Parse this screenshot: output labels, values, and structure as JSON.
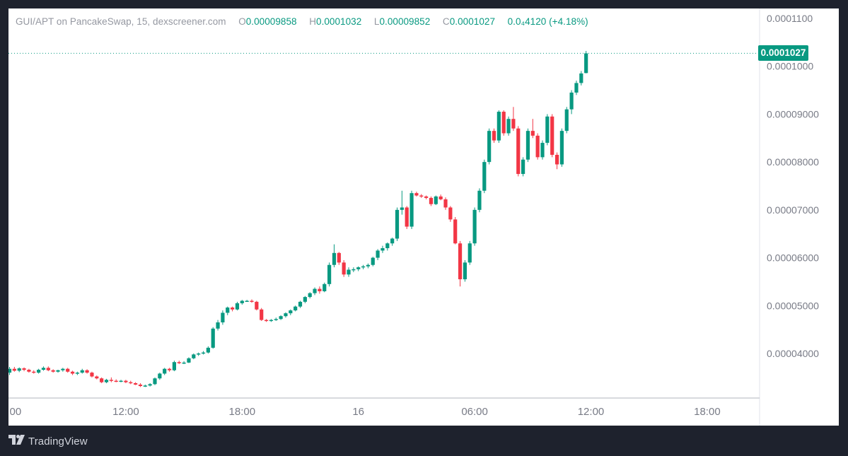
{
  "legend": {
    "symbol_text": "GUI/APT on PancakeSwap, 15, dexscreener.com",
    "open_label": "O",
    "open_value": "0.00009858",
    "high_label": "H",
    "high_value": "0.0001032",
    "low_label": "L",
    "low_value": "0.00009852",
    "close_label": "C",
    "close_value": "0.0001027",
    "change_text": "0.0₄4120 (+4.18%)"
  },
  "last_price_label": "0.0001027",
  "footer": {
    "brand": "TradingView",
    "logo_icon": "tradingview-logo-icon"
  },
  "colors": {
    "up": "#089981",
    "down": "#f23645",
    "background": "#ffffff",
    "frame": "#1e222d",
    "axis_text": "#787b86"
  },
  "chart_data": {
    "type": "candlestick",
    "title": "GUI/APT on PancakeSwap, 15, dexscreener.com",
    "interval": "15",
    "ylim": [
      3.3e-05,
      0.000112
    ],
    "y_ticks": [
      "0.0001100",
      "0.0001000",
      "0.00009000",
      "0.00008000",
      "0.00007000",
      "0.00006000",
      "0.00005000",
      "0.00004000"
    ],
    "y_tick_values": [
      0.00011,
      0.0001,
      9e-05,
      8e-05,
      7e-05,
      6e-05,
      5e-05,
      4e-05
    ],
    "x_ticks": [
      {
        "label": "00",
        "bar": 0
      },
      {
        "label": "12:00",
        "bar": 24
      },
      {
        "label": "18:00",
        "bar": 48
      },
      {
        "label": "16",
        "bar": 72
      },
      {
        "label": "06:00",
        "bar": 96
      },
      {
        "label": "12:00",
        "bar": 120
      },
      {
        "label": "18:00",
        "bar": 144
      }
    ],
    "last_price": 0.0001027,
    "grid": false,
    "candles_ohlc": [
      [
        3.6,
        3.72,
        3.55,
        3.68
      ],
      [
        3.68,
        3.72,
        3.62,
        3.64
      ],
      [
        3.64,
        3.71,
        3.61,
        3.69
      ],
      [
        3.69,
        3.71,
        3.63,
        3.66
      ],
      [
        3.66,
        3.68,
        3.6,
        3.62
      ],
      [
        3.62,
        3.65,
        3.58,
        3.6
      ],
      [
        3.6,
        3.68,
        3.58,
        3.66
      ],
      [
        3.66,
        3.73,
        3.64,
        3.7
      ],
      [
        3.7,
        3.73,
        3.63,
        3.65
      ],
      [
        3.65,
        3.67,
        3.6,
        3.62
      ],
      [
        3.62,
        3.66,
        3.6,
        3.65
      ],
      [
        3.65,
        3.7,
        3.62,
        3.68
      ],
      [
        3.68,
        3.7,
        3.6,
        3.62
      ],
      [
        3.62,
        3.64,
        3.55,
        3.58
      ],
      [
        3.58,
        3.62,
        3.55,
        3.6
      ],
      [
        3.6,
        3.68,
        3.58,
        3.65
      ],
      [
        3.65,
        3.67,
        3.58,
        3.6
      ],
      [
        3.6,
        3.62,
        3.5,
        3.52
      ],
      [
        3.52,
        3.54,
        3.46,
        3.48
      ],
      [
        3.48,
        3.5,
        3.38,
        3.4
      ],
      [
        3.4,
        3.47,
        3.38,
        3.45
      ],
      [
        3.45,
        3.5,
        3.4,
        3.43
      ],
      [
        3.43,
        3.46,
        3.4,
        3.42
      ],
      [
        3.42,
        3.45,
        3.4,
        3.43
      ],
      [
        3.43,
        3.45,
        3.38,
        3.4
      ],
      [
        3.4,
        3.43,
        3.36,
        3.38
      ],
      [
        3.38,
        3.4,
        3.34,
        3.35
      ],
      [
        3.35,
        3.38,
        3.3,
        3.32
      ],
      [
        3.32,
        3.35,
        3.3,
        3.33
      ],
      [
        3.33,
        3.38,
        3.31,
        3.36
      ],
      [
        3.36,
        3.5,
        3.34,
        3.48
      ],
      [
        3.48,
        3.6,
        3.45,
        3.58
      ],
      [
        3.58,
        3.7,
        3.55,
        3.68
      ],
      [
        3.68,
        3.7,
        3.62,
        3.65
      ],
      [
        3.65,
        3.85,
        3.63,
        3.82
      ],
      [
        3.82,
        3.85,
        3.78,
        3.8
      ],
      [
        3.8,
        3.84,
        3.78,
        3.81
      ],
      [
        3.81,
        3.92,
        3.8,
        3.9
      ],
      [
        3.9,
        4.0,
        3.88,
        3.98
      ],
      [
        3.98,
        4.02,
        3.95,
        4.0
      ],
      [
        4.0,
        4.05,
        3.98,
        4.02
      ],
      [
        4.02,
        4.15,
        4.0,
        4.12
      ],
      [
        4.12,
        4.55,
        4.1,
        4.52
      ],
      [
        4.52,
        4.7,
        4.48,
        4.65
      ],
      [
        4.65,
        4.9,
        4.6,
        4.85
      ],
      [
        4.85,
        4.98,
        4.8,
        4.96
      ],
      [
        4.96,
        4.98,
        4.88,
        4.92
      ],
      [
        4.92,
        5.08,
        4.9,
        5.05
      ],
      [
        5.05,
        5.12,
        5.02,
        5.1
      ],
      [
        5.1,
        5.12,
        5.08,
        5.1
      ],
      [
        5.1,
        5.13,
        5.06,
        5.08
      ],
      [
        5.08,
        5.1,
        4.9,
        4.92
      ],
      [
        4.92,
        4.95,
        4.68,
        4.7
      ],
      [
        4.7,
        4.72,
        4.66,
        4.68
      ],
      [
        4.68,
        4.72,
        4.66,
        4.7
      ],
      [
        4.7,
        4.75,
        4.68,
        4.72
      ],
      [
        4.72,
        4.8,
        4.7,
        4.78
      ],
      [
        4.78,
        4.86,
        4.75,
        4.84
      ],
      [
        4.84,
        4.92,
        4.8,
        4.9
      ],
      [
        4.9,
        5.0,
        4.88,
        4.98
      ],
      [
        4.98,
        5.1,
        4.95,
        5.08
      ],
      [
        5.08,
        5.2,
        5.05,
        5.18
      ],
      [
        5.18,
        5.28,
        5.15,
        5.26
      ],
      [
        5.26,
        5.38,
        5.22,
        5.35
      ],
      [
        5.35,
        5.4,
        5.25,
        5.3
      ],
      [
        5.3,
        5.48,
        5.28,
        5.45
      ],
      [
        5.45,
        5.9,
        5.4,
        5.85
      ],
      [
        5.85,
        6.28,
        5.8,
        6.1
      ],
      [
        6.1,
        6.12,
        5.85,
        5.9
      ],
      [
        5.9,
        5.95,
        5.6,
        5.65
      ],
      [
        5.65,
        5.8,
        5.6,
        5.75
      ],
      [
        5.75,
        5.8,
        5.7,
        5.76
      ],
      [
        5.76,
        5.82,
        5.72,
        5.8
      ],
      [
        5.8,
        5.85,
        5.76,
        5.82
      ],
      [
        5.82,
        5.88,
        5.78,
        5.85
      ],
      [
        5.85,
        6.02,
        5.82,
        6.0
      ],
      [
        6.0,
        6.18,
        5.95,
        6.15
      ],
      [
        6.15,
        6.25,
        6.1,
        6.2
      ],
      [
        6.2,
        6.32,
        6.15,
        6.3
      ],
      [
        6.3,
        6.42,
        6.25,
        6.4
      ],
      [
        6.4,
        7.05,
        6.35,
        7.0
      ],
      [
        7.0,
        7.4,
        6.9,
        7.05
      ],
      [
        7.05,
        7.08,
        6.6,
        6.65
      ],
      [
        6.65,
        7.4,
        6.6,
        7.35
      ],
      [
        7.35,
        7.38,
        7.28,
        7.3
      ],
      [
        7.3,
        7.33,
        7.25,
        7.28
      ],
      [
        7.28,
        7.3,
        7.22,
        7.25
      ],
      [
        7.25,
        7.28,
        7.08,
        7.12
      ],
      [
        7.12,
        7.3,
        7.1,
        7.28
      ],
      [
        7.28,
        7.32,
        7.2,
        7.22
      ],
      [
        7.22,
        7.26,
        7.0,
        7.05
      ],
      [
        7.05,
        7.08,
        6.75,
        6.8
      ],
      [
        6.8,
        6.85,
        6.28,
        6.3
      ],
      [
        6.3,
        6.35,
        5.4,
        5.55
      ],
      [
        5.55,
        5.95,
        5.5,
        5.9
      ],
      [
        5.9,
        6.35,
        5.85,
        6.3
      ],
      [
        6.3,
        7.05,
        6.25,
        7.0
      ],
      [
        7.0,
        7.45,
        6.95,
        7.4
      ],
      [
        7.4,
        8.05,
        7.35,
        8.0
      ],
      [
        8.0,
        8.7,
        7.95,
        8.65
      ],
      [
        8.65,
        8.7,
        8.4,
        8.45
      ],
      [
        8.45,
        9.08,
        8.4,
        9.05
      ],
      [
        9.05,
        9.08,
        8.55,
        8.6
      ],
      [
        8.6,
        8.95,
        8.55,
        8.9
      ],
      [
        8.9,
        9.15,
        8.65,
        8.7
      ],
      [
        8.7,
        8.75,
        7.7,
        7.75
      ],
      [
        7.75,
        8.1,
        7.7,
        8.05
      ],
      [
        8.05,
        8.7,
        8.0,
        8.65
      ],
      [
        8.65,
        8.9,
        8.5,
        8.55
      ],
      [
        8.55,
        8.6,
        8.05,
        8.1
      ],
      [
        8.1,
        8.45,
        8.05,
        8.4
      ],
      [
        8.4,
        9.0,
        8.35,
        8.95
      ],
      [
        8.95,
        9.0,
        8.1,
        8.15
      ],
      [
        8.15,
        8.2,
        7.85,
        7.95
      ],
      [
        7.95,
        8.7,
        7.9,
        8.65
      ],
      [
        8.65,
        9.15,
        8.6,
        9.1
      ],
      [
        9.1,
        9.5,
        9.0,
        9.45
      ],
      [
        9.45,
        9.7,
        9.4,
        9.65
      ],
      [
        9.65,
        9.9,
        9.6,
        9.85
      ],
      [
        9.858,
        10.32,
        9.852,
        10.27
      ]
    ]
  }
}
